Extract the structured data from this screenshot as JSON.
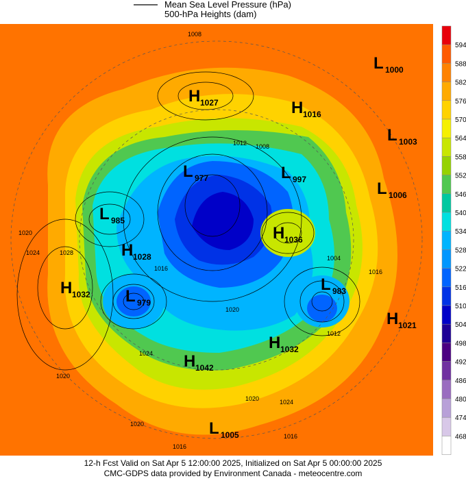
{
  "legend": {
    "line_label": "Mean Sea Level Pressure (hPa)",
    "fill_label": "500-hPa Heights (dam)"
  },
  "colorbar": {
    "values": [
      594,
      588,
      582,
      576,
      570,
      564,
      558,
      552,
      546,
      540,
      534,
      528,
      522,
      516,
      510,
      504,
      498,
      492,
      486,
      480,
      474,
      468
    ],
    "colors": [
      "#e8000b",
      "#ff5a00",
      "#ff8200",
      "#ffaa00",
      "#ffd200",
      "#f5f000",
      "#c8e600",
      "#96d200",
      "#50c850",
      "#00c8a0",
      "#00e0e0",
      "#00b4ff",
      "#0096ff",
      "#0064ff",
      "#0032e6",
      "#0000c8",
      "#1e0096",
      "#4b0082",
      "#7030a0",
      "#9a6cc0",
      "#b8a0d8",
      "#d8c8e8",
      "#ffffff"
    ]
  },
  "centers": [
    {
      "type": "H",
      "value": "1027"
    },
    {
      "type": "H",
      "value": "1016"
    },
    {
      "type": "L",
      "value": "1000"
    },
    {
      "type": "L",
      "value": "1003"
    },
    {
      "type": "L",
      "value": "1006"
    },
    {
      "type": "L",
      "value": "997"
    },
    {
      "type": "L",
      "value": "977"
    },
    {
      "type": "L",
      "value": "985"
    },
    {
      "type": "H",
      "value": "1036"
    },
    {
      "type": "H",
      "value": "1028"
    },
    {
      "type": "H",
      "value": "1032"
    },
    {
      "type": "L",
      "value": "979"
    },
    {
      "type": "L",
      "value": "983"
    },
    {
      "type": "H",
      "value": "1021"
    },
    {
      "type": "H",
      "value": "1032"
    },
    {
      "type": "H",
      "value": "1042"
    },
    {
      "type": "L",
      "value": "1005"
    }
  ],
  "isobar_labels": [
    "1008",
    "1012",
    "1008",
    "1020",
    "1024",
    "1028",
    "1024",
    "1020",
    "1020",
    "1016",
    "1004",
    "1016",
    "1012",
    "1020",
    "1024",
    "1016",
    "1020",
    "1016"
  ],
  "footer": {
    "line1": "12-h Fcst Valid on Sat Apr  5 12:00:00 2025, Initialized on Sat Apr  5 00:00:00 2025",
    "line2": "CMC-GDPS data provided by Environment Canada - meteocentre.com"
  }
}
